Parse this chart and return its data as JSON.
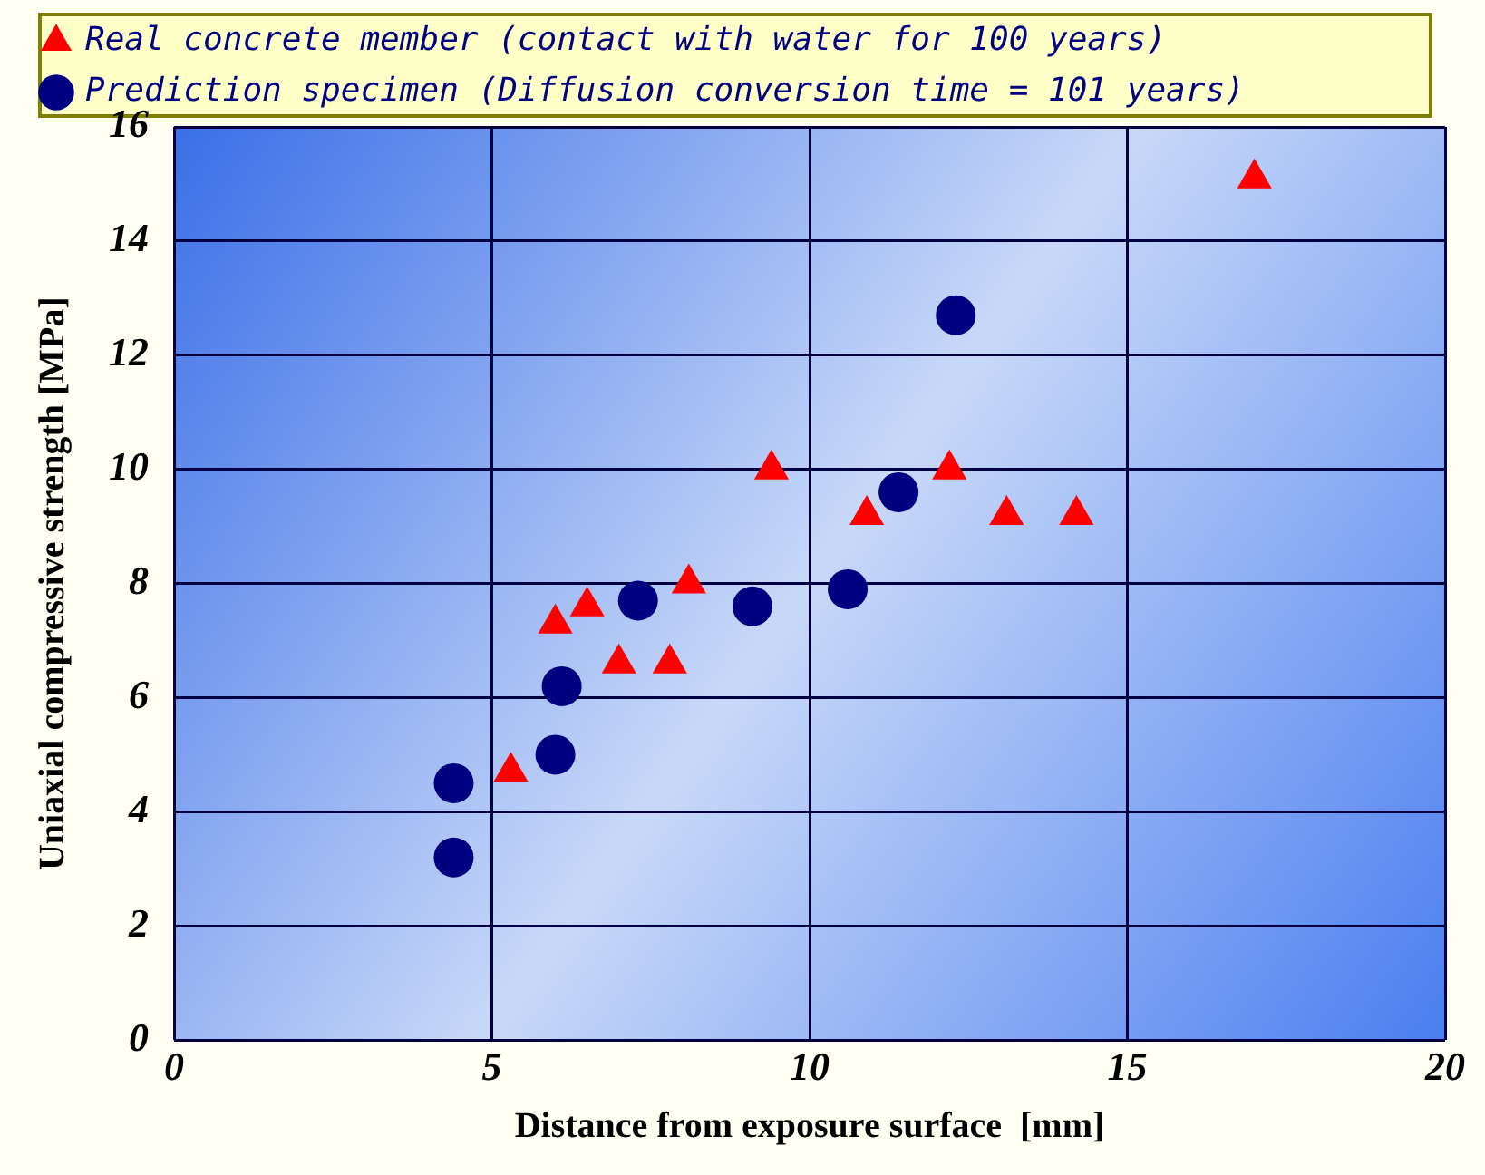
{
  "chart_data": {
    "type": "scatter",
    "xlabel": "Distance from exposure surface  [mm]",
    "ylabel": "Uniaxial compressive strength [MPa]",
    "xlim": [
      0,
      20
    ],
    "xticks": [
      0,
      5,
      10,
      15,
      20
    ],
    "ylim": [
      0,
      16
    ],
    "yticks": [
      0,
      2,
      4,
      6,
      8,
      10,
      12,
      14,
      16
    ],
    "grid": true,
    "legend": "top",
    "series": [
      {
        "name": "Real concrete member (contact with water for 100 years)",
        "color": "#ff0000",
        "marker": "triangle",
        "x": [
          5.3,
          6.0,
          6.5,
          7.0,
          7.8,
          8.1,
          9.4,
          10.9,
          12.2,
          13.1,
          14.2,
          17.0
        ],
        "values": [
          4.7,
          7.3,
          7.6,
          6.6,
          6.6,
          8.0,
          10.0,
          9.2,
          10.0,
          9.2,
          9.2,
          15.1
        ]
      },
      {
        "name": "Prediction specimen (Diffusion conversion time = 101 years)",
        "color": "#000080",
        "marker": "circle",
        "x": [
          4.4,
          4.4,
          6.0,
          6.1,
          7.3,
          9.1,
          10.6,
          11.4,
          12.3
        ],
        "values": [
          4.5,
          3.2,
          5.0,
          6.2,
          7.7,
          7.6,
          7.9,
          9.6,
          12.7
        ]
      }
    ]
  }
}
